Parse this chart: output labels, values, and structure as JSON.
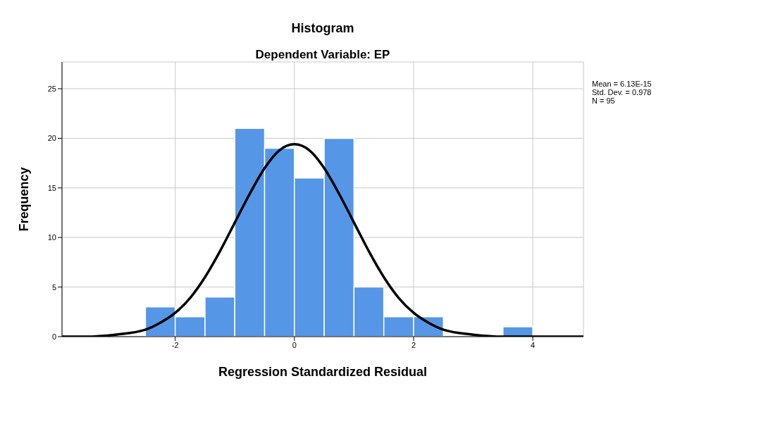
{
  "chart_data": {
    "type": "histogram",
    "title": "Histogram",
    "subtitle": "Dependent Variable: EP",
    "xlabel": "Regression Standardized Residual",
    "ylabel": "Frequency",
    "annotations": [
      "Mean = 6.13E-15",
      "Std. Dev. = 0.978",
      "N = 95"
    ],
    "bins": [
      -2.5,
      -2,
      -1.5,
      -1,
      -0.5,
      0,
      0.5,
      1,
      1.5,
      2,
      2.5,
      3,
      3.5,
      4
    ],
    "values": [
      3,
      2,
      4,
      21,
      19,
      16,
      20,
      5,
      2,
      2,
      0,
      0,
      1
    ],
    "color": "#5596e6",
    "series": [
      {
        "type": "line",
        "color": "#000000",
        "x": [
          -3.9,
          -3.5,
          -3,
          -2.5,
          -2.25,
          -2,
          -1.75,
          -1.5,
          -1.25,
          -1,
          -0.75,
          -0.5,
          -0.25,
          0,
          0.25,
          0.5,
          0.75,
          1,
          1.25,
          1.5,
          1.75,
          2,
          2.25,
          2.5,
          3,
          3.5,
          4,
          4.85
        ],
        "values": [
          0,
          0,
          0.2,
          0.7,
          1.4,
          2.4,
          3.9,
          6,
          8.6,
          11.5,
          14.4,
          17,
          18.8,
          19.4,
          18.8,
          17,
          14.4,
          11.5,
          8.6,
          6,
          3.9,
          2.4,
          1.4,
          0.7,
          0.2,
          0,
          0,
          0
        ]
      }
    ],
    "xlim": [
      -3.9,
      4.85
    ],
    "xticks": [
      -2,
      0,
      2,
      4
    ],
    "ylim": [
      0,
      27.7
    ],
    "yticks": [
      0,
      5,
      10,
      15,
      20,
      25
    ],
    "grid": true,
    "marker": "none"
  }
}
